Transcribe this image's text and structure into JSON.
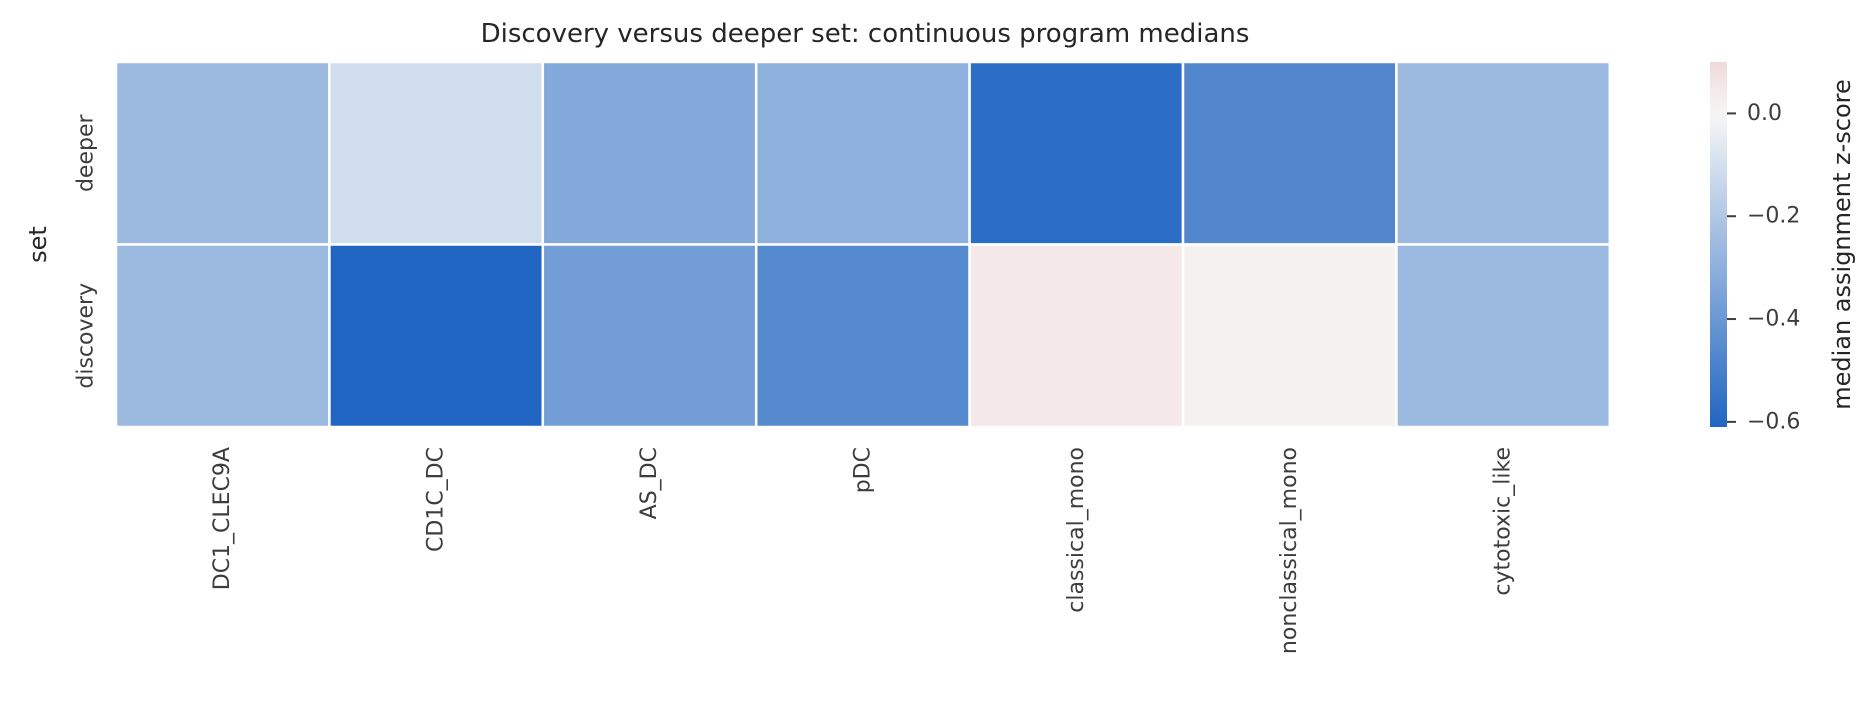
{
  "chart_data": {
    "type": "heatmap",
    "title": "Discovery versus deeper set: continuous program medians",
    "ylabel": "set",
    "xlabel": "",
    "rows": [
      "deeper",
      "discovery"
    ],
    "columns": [
      "DC1_CLEC9A",
      "CD1C_DC",
      "AS_DC",
      "pDC",
      "classical_mono",
      "nonclassical_mono",
      "cytotoxic_like"
    ],
    "values": [
      [
        -0.26,
        -0.11,
        -0.33,
        -0.3,
        -0.58,
        -0.47,
        -0.26
      ],
      [
        -0.26,
        -0.61,
        -0.38,
        -0.46,
        0.05,
        0.02,
        -0.26
      ]
    ],
    "colorbar": {
      "label": "median assignment z-score",
      "range": [
        -0.61,
        0.1
      ],
      "ticks": [
        0.0,
        -0.2,
        -0.4,
        -0.6
      ],
      "tick_labels": [
        "0.0",
        "−0.2",
        "−0.4",
        "−0.6"
      ],
      "color_low": "#2166c2",
      "color_mid": "#f7f7f7",
      "color_high": "#f0d9d9"
    },
    "grid": false
  }
}
